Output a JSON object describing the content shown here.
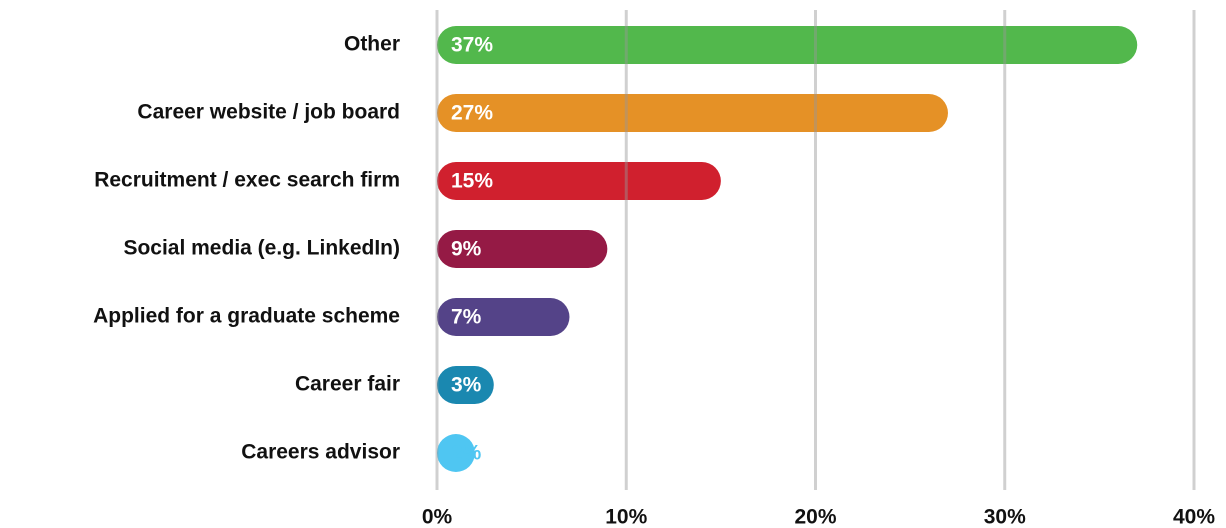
{
  "chart_data": {
    "type": "bar",
    "orientation": "horizontal",
    "categories": [
      "Other",
      "Career website / job board",
      "Recruitment / exec search firm",
      "Social media (e.g. LinkedIn)",
      "Applied for a graduate scheme",
      "Career fair",
      "Careers advisor"
    ],
    "values": [
      37,
      27,
      15,
      9,
      7,
      3,
      2
    ],
    "value_labels": [
      "37%",
      "27%",
      "15%",
      "9%",
      "7%",
      "3%",
      "2%"
    ],
    "colors": [
      "#52b84c",
      "#e59126",
      "#d0202e",
      "#951a45",
      "#544388",
      "#1a88b0",
      "#4fc6f2"
    ],
    "xlim": [
      0,
      40
    ],
    "xticks": [
      {
        "value": 0,
        "label": "0%"
      },
      {
        "value": 10,
        "label": "10%"
      },
      {
        "value": 20,
        "label": "20%"
      },
      {
        "value": 30,
        "label": "30%"
      },
      {
        "value": 40,
        "label": "40%"
      }
    ],
    "grid": true
  }
}
